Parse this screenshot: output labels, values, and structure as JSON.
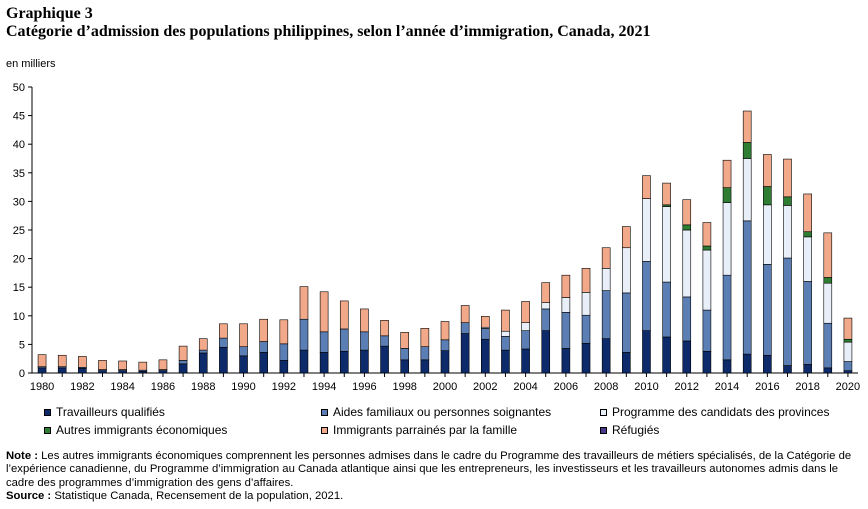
{
  "figure_label": "Graphique 3",
  "title": "Catégorie d’admission des populations philippines, selon l’année d’immigration, Canada, 2021",
  "unit_label": "en milliers",
  "chart_data": {
    "type": "bar",
    "stacked": true,
    "title": "Catégorie d’admission des populations philippines, selon l’année d’immigration, Canada, 2021",
    "xlabel": "",
    "ylabel": "en milliers",
    "ylim": [
      0,
      50
    ],
    "yticks": [
      0,
      5,
      10,
      15,
      20,
      25,
      30,
      35,
      40,
      45,
      50
    ],
    "grid": false,
    "legend_position": "bottom",
    "categories": [
      1980,
      1981,
      1982,
      1983,
      1984,
      1985,
      1986,
      1987,
      1988,
      1989,
      1990,
      1991,
      1992,
      1993,
      1994,
      1995,
      1996,
      1997,
      1998,
      1999,
      2000,
      2001,
      2002,
      2003,
      2004,
      2005,
      2006,
      2007,
      2008,
      2009,
      2010,
      2011,
      2012,
      2013,
      2014,
      2015,
      2016,
      2017,
      2018,
      2019,
      2020
    ],
    "x_tick_labels": [
      "1980",
      "1982",
      "1984",
      "1986",
      "1988",
      "1990",
      "1992",
      "1994",
      "1996",
      "1998",
      "2000",
      "2002",
      "2004",
      "2006",
      "2008",
      "2010",
      "2012",
      "2014",
      "2016",
      "2018",
      "2020"
    ],
    "series": [
      {
        "name": "Travailleurs qualifiés",
        "color": "#0d2a6b",
        "values": [
          0.9,
          0.9,
          0.8,
          0.4,
          0.4,
          0.3,
          0.4,
          1.6,
          3.5,
          4.5,
          3.0,
          3.6,
          2.2,
          4.0,
          3.6,
          3.8,
          4.0,
          4.7,
          2.3,
          2.3,
          3.9,
          6.9,
          5.9,
          4.0,
          4.2,
          7.4,
          4.3,
          5.2,
          6.0,
          3.6,
          7.4,
          6.3,
          5.6,
          3.8,
          2.3,
          3.3,
          3.1,
          1.3,
          1.5,
          0.9,
          0.4
        ]
      },
      {
        "name": "Aides familiaux ou personnes soignantes",
        "color": "#5b7fb5",
        "values": [
          0.2,
          0.2,
          0.2,
          0.2,
          0.2,
          0.2,
          0.2,
          0.6,
          0.5,
          1.6,
          1.6,
          1.9,
          2.9,
          5.4,
          3.6,
          3.9,
          3.2,
          1.8,
          2.0,
          2.3,
          1.9,
          1.9,
          1.9,
          2.4,
          3.2,
          3.8,
          6.3,
          4.9,
          8.4,
          10.4,
          12.1,
          9.6,
          7.7,
          7.2,
          14.8,
          23.3,
          15.9,
          18.8,
          14.5,
          7.8,
          1.6
        ]
      },
      {
        "name": "Programme des candidats des provinces",
        "color": "#e8eff8",
        "values": [
          0,
          0,
          0,
          0,
          0,
          0,
          0,
          0,
          0,
          0,
          0,
          0,
          0,
          0,
          0,
          0,
          0,
          0,
          0,
          0,
          0,
          0,
          0.2,
          0.9,
          1.4,
          1.1,
          2.6,
          4.0,
          3.9,
          7.9,
          11.0,
          13.2,
          11.7,
          10.5,
          12.7,
          10.9,
          10.4,
          9.2,
          7.8,
          7.0,
          3.4
        ]
      },
      {
        "name": "Autres immigrants économiques",
        "color": "#2e7d32",
        "values": [
          0,
          0,
          0,
          0,
          0,
          0,
          0,
          0,
          0,
          0,
          0,
          0,
          0,
          0,
          0,
          0,
          0,
          0,
          0,
          0,
          0,
          0,
          0,
          0,
          0,
          0,
          0,
          0,
          0,
          0,
          0,
          0.3,
          0.9,
          0.7,
          2.6,
          2.8,
          3.2,
          1.5,
          0.9,
          1.0,
          0.5
        ]
      },
      {
        "name": "Immigrants parrainés par la famille",
        "color": "#f2a98a",
        "values": [
          2.1,
          2.0,
          1.9,
          1.6,
          1.5,
          1.4,
          1.7,
          2.5,
          2.0,
          2.5,
          4.0,
          3.9,
          4.2,
          5.7,
          7.0,
          4.9,
          4.0,
          2.7,
          2.8,
          3.2,
          3.2,
          3.0,
          1.9,
          3.7,
          3.7,
          3.5,
          3.9,
          4.2,
          3.6,
          3.7,
          4.0,
          3.8,
          4.4,
          4.1,
          4.8,
          5.5,
          5.6,
          6.6,
          6.6,
          7.8,
          3.7
        ]
      },
      {
        "name": "Réfugiés",
        "color": "#4b3a8c",
        "values": [
          0,
          0,
          0,
          0,
          0,
          0,
          0,
          0,
          0,
          0,
          0,
          0,
          0,
          0,
          0,
          0,
          0,
          0,
          0,
          0,
          0,
          0,
          0,
          0,
          0,
          0,
          0,
          0,
          0,
          0,
          0,
          0,
          0,
          0,
          0,
          0,
          0,
          0,
          0,
          0,
          0
        ]
      }
    ]
  },
  "notes": {
    "note_label": "Note :",
    "note_text": " Les autres immigrants économiques comprennent les personnes admises dans le cadre du Programme des travailleurs de métiers spécialisés, de la Catégorie de l’expérience canadienne, du Programme d’immigration au Canada atlantique ainsi que les entrepreneurs, les investisseurs et les travailleurs autonomes admis dans le cadre des programmes d’immigration des gens d’affaires.",
    "source_label": "Source :",
    "source_text": " Statistique Canada, Recensement de la population, 2021."
  }
}
